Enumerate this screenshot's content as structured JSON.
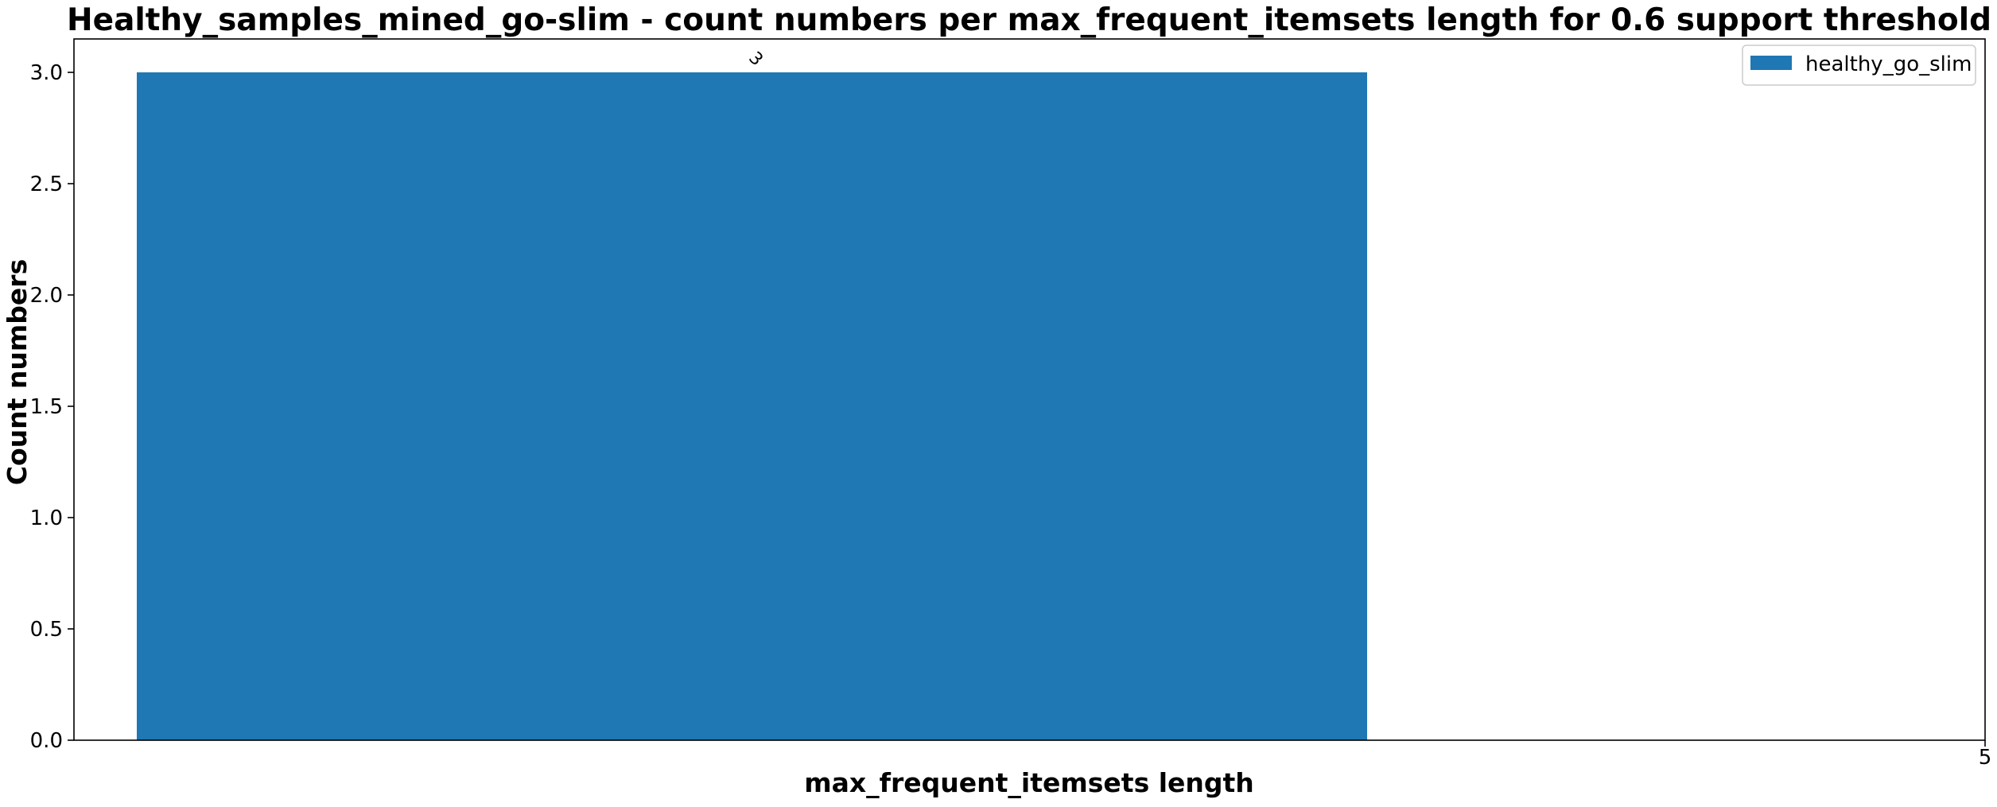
{
  "chart_data": {
    "type": "bar",
    "title": "Healthy_samples_mined_go-slim - count numbers per max_frequent_itemsets length for 0.6 support threshold",
    "xlabel": "max_frequent_itemsets length",
    "ylabel": "Count numbers",
    "x_tick_labels": [
      "5"
    ],
    "y_ticks": [
      0.0,
      0.5,
      1.0,
      1.5,
      2.0,
      2.5,
      3.0
    ],
    "y_tick_labels": [
      "0.0",
      "0.5",
      "1.0",
      "1.5",
      "2.0",
      "2.5",
      "3.0"
    ],
    "ylim": [
      0,
      3.15
    ],
    "grid": false,
    "legend_position": "top-right",
    "series": [
      {
        "name": "healthy_go_slim",
        "color": "#1f77b4",
        "values": [
          3
        ],
        "data_labels": [
          "3"
        ]
      }
    ]
  }
}
